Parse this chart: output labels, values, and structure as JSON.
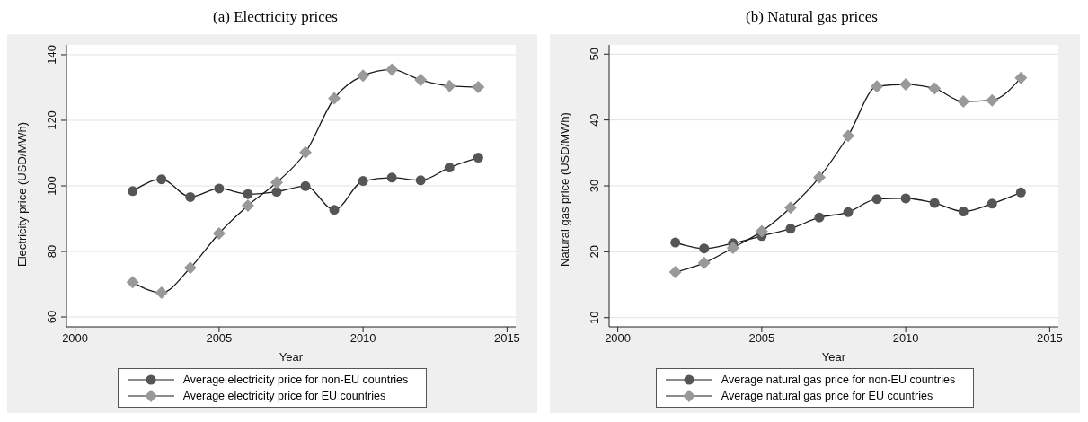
{
  "chart_data": [
    {
      "type": "line",
      "title": "(a) Electricity prices",
      "xlabel": "Year",
      "ylabel": "Electricity price (USD/MWh)",
      "x": [
        2002,
        2003,
        2004,
        2005,
        2006,
        2007,
        2008,
        2009,
        2010,
        2011,
        2012,
        2013,
        2014
      ],
      "series": [
        {
          "name": "Average electricity price for non-EU countries",
          "color": "#555555",
          "marker": "circle",
          "values": [
            98.4,
            102,
            96.6,
            99.2,
            97.5,
            98.2,
            99.9,
            92.7,
            101.5,
            102.5,
            101.7,
            105.6,
            108.6
          ]
        },
        {
          "name": "Average electricity price for EU countries",
          "color": "#999999",
          "marker": "diamond",
          "values": [
            70.6,
            67.4,
            75,
            85.5,
            94,
            101,
            110.2,
            126.7,
            133.6,
            135.5,
            132.3,
            130.5,
            130.1
          ]
        }
      ],
      "xlim": [
        1999.7,
        2015.3
      ],
      "xticks": [
        2000,
        2005,
        2010,
        2015
      ],
      "ylim": [
        57,
        143
      ],
      "yticks": [
        60,
        80,
        100,
        120,
        140
      ],
      "grid": "y",
      "legend": "bottom",
      "line_style": "solid"
    },
    {
      "type": "line",
      "title": "(b) Natural gas prices",
      "xlabel": "Year",
      "ylabel": "Natural gas price (USD/MWh)",
      "x": [
        2002,
        2003,
        2004,
        2005,
        2006,
        2007,
        2008,
        2009,
        2010,
        2011,
        2012,
        2013,
        2014
      ],
      "series": [
        {
          "name": "Average natural gas price for non-EU countries",
          "color": "#555555",
          "marker": "circle",
          "values": [
            21.4,
            20.5,
            21.3,
            22.4,
            23.5,
            25.2,
            26,
            28,
            28.1,
            27.4,
            26.1,
            27.3,
            29
          ]
        },
        {
          "name": "Average natural gas price for EU countries",
          "color": "#999999",
          "marker": "diamond",
          "values": [
            16.9,
            18.3,
            20.6,
            23.1,
            26.7,
            31.3,
            37.6,
            45.1,
            45.4,
            44.8,
            42.8,
            43,
            46.4
          ]
        }
      ],
      "xlim": [
        1999.7,
        2015.3
      ],
      "xticks": [
        2000,
        2005,
        2010,
        2015
      ],
      "ylim": [
        8.6,
        51.4
      ],
      "yticks": [
        10,
        20,
        30,
        40,
        50
      ],
      "grid": "y",
      "legend": "bottom",
      "line_style": "solid"
    }
  ]
}
